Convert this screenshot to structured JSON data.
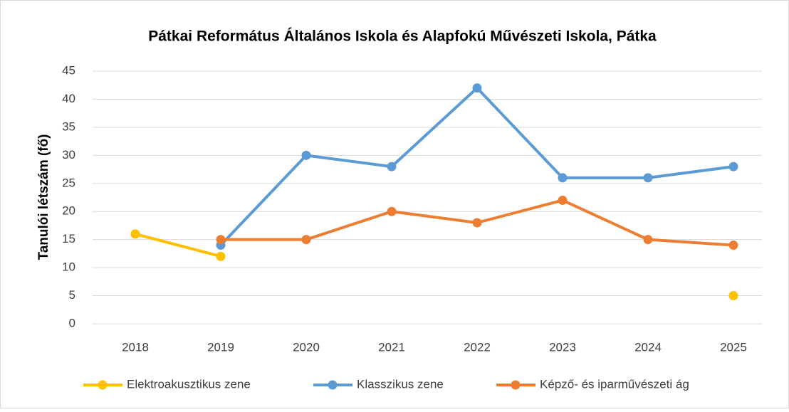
{
  "chart_data": {
    "type": "line",
    "title": "Pátkai Református Általános Iskola és Alapfokú Művészeti Iskola, Pátka",
    "y_label": "Tanulói létszám (fő)",
    "categories": [
      "2018",
      "2019",
      "2020",
      "2021",
      "2022",
      "2023",
      "2024",
      "2025"
    ],
    "series": [
      {
        "name": "Elektroakusztikus zene",
        "color": "#ffc000",
        "values": [
          16,
          12,
          null,
          null,
          null,
          null,
          null,
          5
        ]
      },
      {
        "name": "Klasszikus zene",
        "color": "#5b9bd5",
        "values": [
          null,
          14,
          30,
          28,
          42,
          26,
          26,
          28
        ]
      },
      {
        "name": "Képző- és iparművészeti ág",
        "color": "#ed7d31",
        "values": [
          null,
          15,
          15,
          20,
          18,
          22,
          15,
          14
        ]
      }
    ],
    "ylim": [
      0,
      45
    ],
    "yticks": [
      0,
      5,
      10,
      15,
      20,
      25,
      30,
      35,
      40,
      45
    ],
    "grid": true,
    "legend": "bottom"
  }
}
